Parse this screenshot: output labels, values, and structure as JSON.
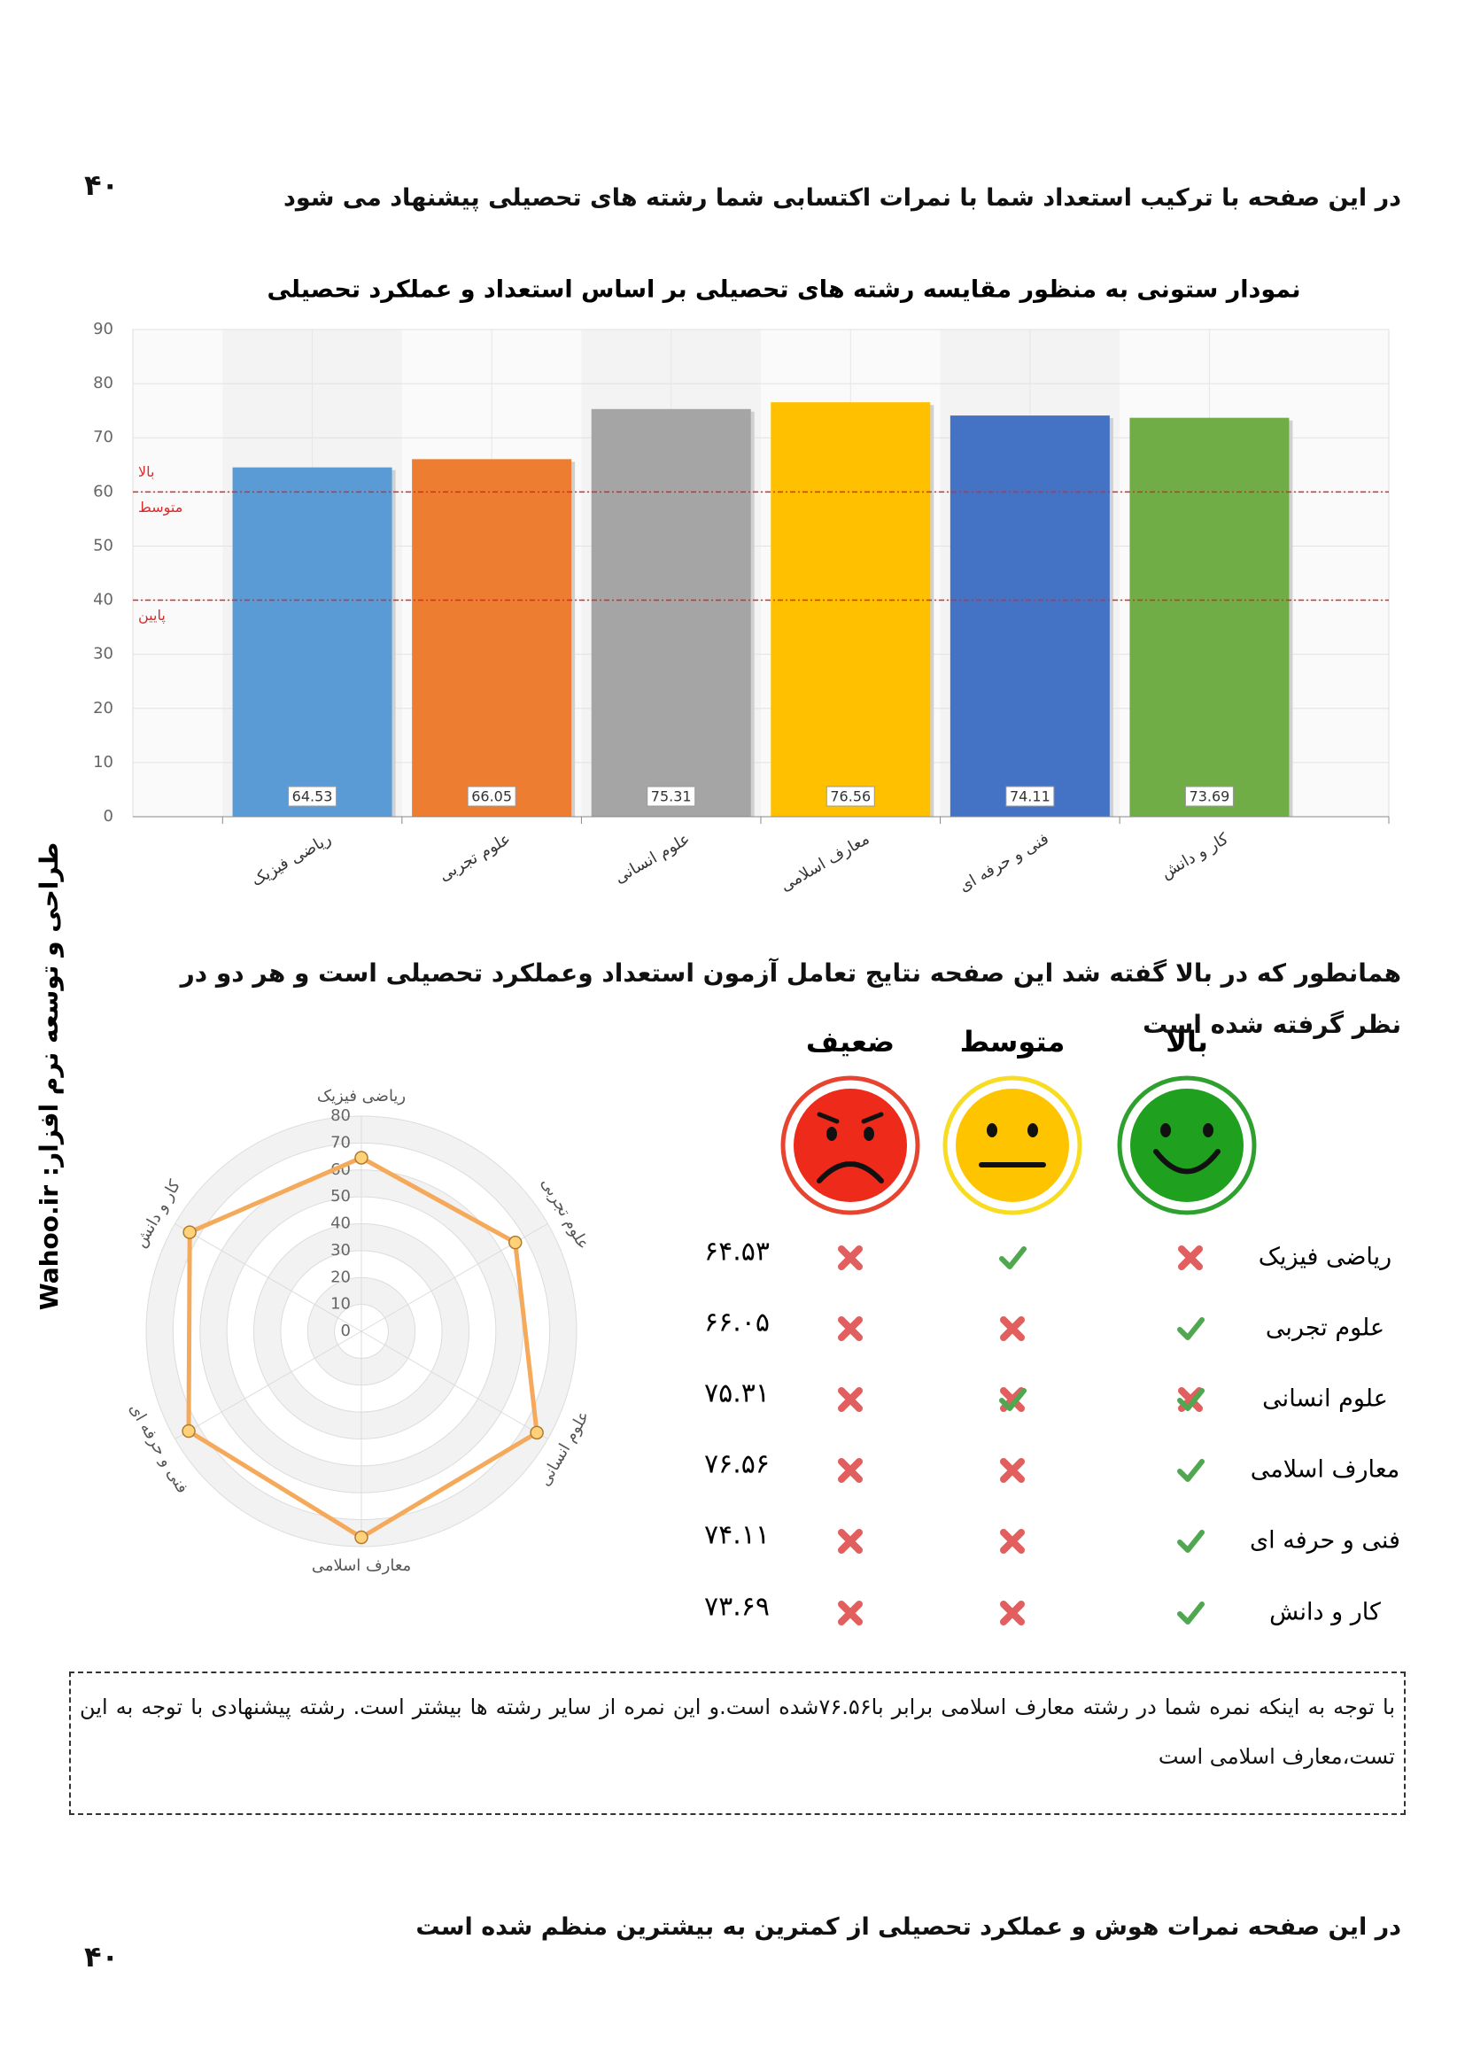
{
  "page_number_top": "۴۰",
  "header": "در این صفحه با ترکیب استعداد شما با نمرات اکتسابی شما رشته های تحصیلی پیشنهاد می شود",
  "chart_data": [
    {
      "type": "bar",
      "title": "نمودار ستونی به منظور مقایسه رشته های تحصیلی بر اساس استعداد و عملکرد تحصیلی",
      "categories": [
        "ریاضی فیزیک",
        "علوم تجربی",
        "علوم انسانی",
        "معارف اسلامی",
        "فنی و حرفه ای",
        "کار و دانش"
      ],
      "values": [
        64.53,
        66.05,
        75.31,
        76.56,
        74.11,
        73.69
      ],
      "colors": [
        "#5b9bd5",
        "#ed7d31",
        "#a5a5a5",
        "#ffc000",
        "#4472c4",
        "#70ad47"
      ],
      "ylim": [
        0,
        90
      ],
      "yticks": [
        0,
        10,
        20,
        30,
        40,
        50,
        60,
        70,
        80,
        90
      ],
      "grid": true,
      "reference_lines": [
        {
          "value": 60,
          "label_above": "بالا",
          "label_below": "متوسط"
        },
        {
          "value": 40,
          "label_below": "پایین"
        }
      ],
      "reference_color": "#d92b2b"
    },
    {
      "type": "radar",
      "categories": [
        "ریاضی فیزیک",
        "علوم تجربی",
        "علوم انسانی",
        "معارف اسلامی",
        "فنی و حرفه ای",
        "کار و دانش"
      ],
      "values": [
        64.53,
        66.05,
        75.31,
        76.56,
        74.11,
        73.69
      ],
      "color": "#f5a95a",
      "marker_color": "#ffd27a",
      "rlim": [
        0,
        80
      ],
      "rticks": [
        0,
        10,
        20,
        30,
        40,
        50,
        60,
        70,
        80
      ],
      "grid": true
    }
  ],
  "intro": "همانطور که در بالا گفته شد این صفحه نتایج تعامل آزمون استعداد وعملکرد تحصیلی است و هر دو در نظر گرفته شده است",
  "table": {
    "headers": [
      "بالا",
      "متوسط",
      "ضعیف"
    ],
    "rows": [
      {
        "name": "ریاضی فیزیک",
        "score": "۶۴.۵۳",
        "marks": [
          "cross",
          "check",
          "cross"
        ]
      },
      {
        "name": "علوم تجربی",
        "score": "۶۶.۰۵",
        "marks": [
          "check",
          "cross",
          "cross"
        ]
      },
      {
        "name": "علوم انسانی",
        "score": "۷۵.۳۱",
        "marks": [
          "both",
          "both",
          "cross"
        ]
      },
      {
        "name": "معارف اسلامی",
        "score": "۷۶.۵۶",
        "marks": [
          "check",
          "cross",
          "cross"
        ]
      },
      {
        "name": "فنی و حرفه ای",
        "score": "۷۴.۱۱",
        "marks": [
          "check",
          "cross",
          "cross"
        ]
      },
      {
        "name": "کار و دانش",
        "score": "۷۳.۶۹",
        "marks": [
          "check",
          "cross",
          "cross"
        ]
      }
    ]
  },
  "note": "با توجه به اینکه نمره شما در رشته معارف اسلامی برابر با۷۶.۵۶شده است.و این نمره از سایر رشته ها بیشتر است. رشته پیشنهادی با توجه به این تست،معارف اسلامی است",
  "footer": "در این صفحه نمرات هوش و عملکرد تحصیلی از کمترین به بیشترین منظم شده است",
  "page_number_bottom": "۴۰",
  "side_text": "طراحی و توسعه نرم افزار: Wahoo.ir"
}
